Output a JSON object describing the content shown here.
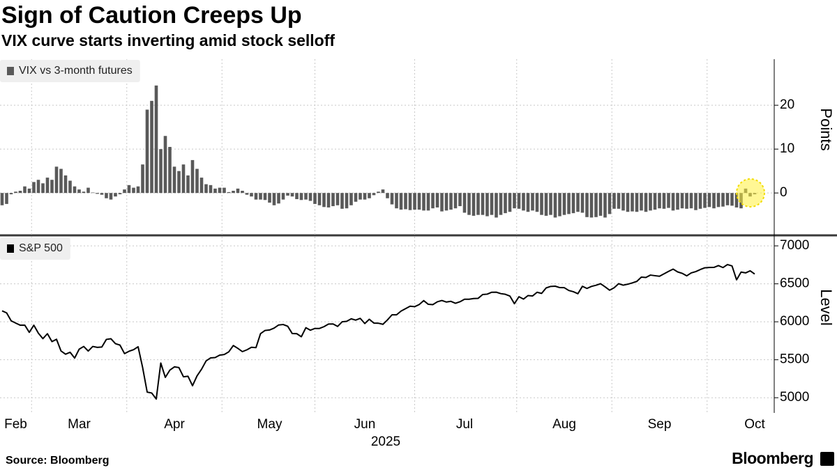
{
  "title": "Sign of Caution Creeps Up",
  "subtitle": "VIX curve starts inverting amid stock selloff",
  "source": "Source: Bloomberg",
  "brand": "Bloomberg",
  "chart_data": [
    {
      "type": "bar",
      "y_label": "Points",
      "ylim": [
        -9.5,
        30.5
      ],
      "yticks": [
        0,
        10,
        20
      ],
      "grid": true,
      "legend": "top-left",
      "series": [
        {
          "name": "VIX vs 3-month futures",
          "color": "#595959",
          "values": [
            -2.8,
            -2.5,
            -0.3,
            0.3,
            0.5,
            1.5,
            1.0,
            2.5,
            3.0,
            2.2,
            3.5,
            3.0,
            6.0,
            5.5,
            4.0,
            2.8,
            1.5,
            0.8,
            0.3,
            1.2,
            0.1,
            -0.2,
            -0.4,
            -1.2,
            -1.5,
            -0.8,
            -0.3,
            0.8,
            1.8,
            1.2,
            1.5,
            6.5,
            19,
            21,
            24.5,
            10,
            13,
            10.5,
            6,
            5,
            6.5,
            4,
            7.5,
            5.5,
            3.5,
            2.0,
            1.8,
            1.0,
            1.2,
            1.2,
            0.2,
            0.5,
            1.0,
            0.5,
            -0.4,
            -0.8,
            -1.5,
            -1.5,
            -1.6,
            -2.2,
            -2.8,
            -2.4,
            -1.5,
            -0.6,
            -0.8,
            -1.4,
            -1.6,
            -1.5,
            -1.8,
            -2.5,
            -2.8,
            -3.2,
            -3.3,
            -3.0,
            -2.8,
            -3.6,
            -3.5,
            -2.8,
            -2.0,
            -1.5,
            -1.5,
            -1.2,
            -0.5,
            0.3,
            0.8,
            -1.2,
            -2.6,
            -3.5,
            -3.8,
            -3.7,
            -3.9,
            -3.8,
            -3.8,
            -4.0,
            -4.0,
            -3.5,
            -3.3,
            -4.2,
            -4.0,
            -3.8,
            -3.5,
            -3.0,
            -4.5,
            -5.0,
            -5.2,
            -5.0,
            -5.0,
            -5.3,
            -5.0,
            -5.6,
            -5.0,
            -4.6,
            -4.3,
            -3.5,
            -3.6,
            -4.0,
            -4.3,
            -4.0,
            -4.3,
            -5.0,
            -5.2,
            -5.0,
            -5.6,
            -5.3,
            -5.0,
            -4.8,
            -4.6,
            -4.3,
            -4.5,
            -5.5,
            -5.6,
            -5.5,
            -5.2,
            -5.6,
            -4.8,
            -3.6,
            -3.6,
            -4.0,
            -4.3,
            -4.2,
            -4.3,
            -4.0,
            -4.3,
            -4.0,
            -3.8,
            -3.5,
            -3.6,
            -3.4,
            -4.0,
            -3.8,
            -3.5,
            -3.6,
            -3.5,
            -3.9,
            -3.6,
            -3.4,
            -3.2,
            -3.5,
            -3.2,
            -3.1,
            -2.8,
            -2.9,
            -3.3,
            -3.5,
            1.0,
            -0.8,
            -0.3
          ]
        }
      ]
    },
    {
      "type": "line",
      "y_label": "Level",
      "x_label": "2025",
      "ylim": [
        4800,
        7120
      ],
      "yticks": [
        5000,
        5500,
        6000,
        6500,
        7000
      ],
      "grid": true,
      "legend": "top-left",
      "categories": [
        null,
        null,
        null,
        "Feb",
        null,
        null,
        null,
        null,
        null,
        null,
        null,
        null,
        null,
        null,
        null,
        null,
        null,
        "Mar",
        null,
        null,
        null,
        null,
        null,
        null,
        null,
        null,
        null,
        null,
        null,
        null,
        null,
        null,
        null,
        null,
        null,
        null,
        null,
        null,
        "Apr",
        null,
        null,
        null,
        null,
        null,
        null,
        null,
        null,
        null,
        null,
        null,
        null,
        null,
        null,
        null,
        null,
        null,
        null,
        null,
        null,
        "May",
        null,
        null,
        null,
        null,
        null,
        null,
        null,
        null,
        null,
        null,
        null,
        null,
        null,
        null,
        null,
        null,
        null,
        null,
        null,
        null,
        "Jun",
        null,
        null,
        null,
        null,
        null,
        null,
        null,
        null,
        null,
        null,
        null,
        null,
        null,
        null,
        null,
        null,
        null,
        null,
        null,
        null,
        null,
        "Jul",
        null,
        null,
        null,
        null,
        null,
        null,
        null,
        null,
        null,
        null,
        null,
        null,
        null,
        null,
        null,
        null,
        null,
        null,
        null,
        null,
        null,
        "Aug",
        null,
        null,
        null,
        null,
        null,
        null,
        null,
        null,
        null,
        null,
        null,
        null,
        null,
        null,
        null,
        null,
        null,
        null,
        null,
        null,
        "Sep",
        null,
        null,
        null,
        null,
        null,
        null,
        null,
        null,
        null,
        null,
        null,
        null,
        null,
        null,
        null,
        null,
        null,
        null,
        null,
        null,
        "Oct"
      ],
      "series": [
        {
          "name": "S&P 500",
          "color": "#000000",
          "values": [
            6144,
            6117,
            6013,
            5983,
            5955,
            5956,
            5861,
            5955,
            5850,
            5778,
            5843,
            5739,
            5770,
            5615,
            5573,
            5599,
            5522,
            5639,
            5675,
            5615,
            5675,
            5663,
            5668,
            5768,
            5777,
            5712,
            5693,
            5581,
            5612,
            5633,
            5671,
            5397,
            5074,
            5062,
            4983,
            5457,
            5268,
            5363,
            5406,
            5397,
            5276,
            5283,
            5158,
            5288,
            5376,
            5485,
            5525,
            5529,
            5561,
            5569,
            5604,
            5687,
            5650,
            5607,
            5631,
            5664,
            5660,
            5844,
            5886,
            5892,
            5917,
            5958,
            5964,
            5941,
            5845,
            5843,
            5803,
            5922,
            5889,
            5912,
            5912,
            5936,
            5970,
            5971,
            5939,
            6000,
            6006,
            6039,
            6022,
            6045,
            5977,
            6033,
            5983,
            5981,
            5967,
            6025,
            6092,
            6092,
            6141,
            6173,
            6205,
            6199,
            6227,
            6279,
            6230,
            6226,
            6263,
            6280,
            6260,
            6269,
            6244,
            6264,
            6297,
            6297,
            6306,
            6309,
            6359,
            6364,
            6389,
            6390,
            6371,
            6362,
            6339,
            6238,
            6330,
            6299,
            6345,
            6340,
            6389,
            6374,
            6446,
            6466,
            6469,
            6450,
            6449,
            6412,
            6396,
            6370,
            6467,
            6439,
            6466,
            6481,
            6502,
            6460,
            6416,
            6448,
            6502,
            6482,
            6495,
            6512,
            6532,
            6588,
            6584,
            6615,
            6607,
            6600,
            6632,
            6664,
            6694,
            6657,
            6638,
            6605,
            6644,
            6661,
            6688,
            6711,
            6715,
            6716,
            6740,
            6714,
            6754,
            6735,
            6553,
            6655,
            6644,
            6671,
            6629
          ]
        }
      ]
    }
  ]
}
